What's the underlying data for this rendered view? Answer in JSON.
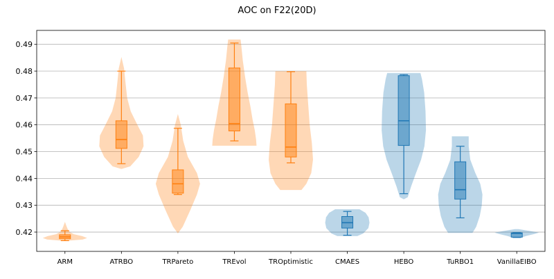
{
  "chart_data": {
    "type": "violin+box",
    "title": "AOC on F22(20D)",
    "xlabel": "",
    "ylabel": "",
    "ylim": [
      0.4128,
      0.4952
    ],
    "yticks": [
      0.42,
      0.43,
      0.44,
      0.45,
      0.46,
      0.47,
      0.48,
      0.49
    ],
    "grid": "horizontal",
    "colors": {
      "orange": "#ff7f0e",
      "blue": "#1f77b4"
    },
    "categories": [
      "ARM",
      "ATRBO",
      "TRPareto",
      "TREvol",
      "TROptimistic",
      "CMAES",
      "HEBO",
      "TuRBO1",
      "VanillaEIBO"
    ],
    "groups": [
      {
        "name": "ARM",
        "color": "orange",
        "box": {
          "whislo": 0.4168,
          "q1": 0.4175,
          "med": 0.4182,
          "q3": 0.419,
          "whishi": 0.4205
        },
        "violin": [
          [
            0.4167,
            0.0
          ],
          [
            0.4172,
            0.8
          ],
          [
            0.4178,
            1.0
          ],
          [
            0.4185,
            0.78
          ],
          [
            0.4192,
            0.4
          ],
          [
            0.42,
            0.22
          ],
          [
            0.421,
            0.13
          ],
          [
            0.4222,
            0.07
          ],
          [
            0.4238,
            0.0
          ]
        ]
      },
      {
        "name": "ATRBO",
        "color": "orange",
        "box": {
          "whislo": 0.4455,
          "q1": 0.4512,
          "med": 0.4545,
          "q3": 0.4615,
          "whishi": 0.48
        },
        "violin": [
          [
            0.4435,
            0.0
          ],
          [
            0.4445,
            0.4
          ],
          [
            0.448,
            0.78
          ],
          [
            0.452,
            1.0
          ],
          [
            0.456,
            0.97
          ],
          [
            0.46,
            0.72
          ],
          [
            0.465,
            0.42
          ],
          [
            0.47,
            0.26
          ],
          [
            0.476,
            0.18
          ],
          [
            0.481,
            0.12
          ],
          [
            0.4853,
            0.0
          ]
        ]
      },
      {
        "name": "TRPareto",
        "color": "orange",
        "box": {
          "whislo": 0.434,
          "q1": 0.4345,
          "med": 0.438,
          "q3": 0.4432,
          "whishi": 0.4587
        },
        "violin": [
          [
            0.4195,
            0.0
          ],
          [
            0.422,
            0.22
          ],
          [
            0.428,
            0.55
          ],
          [
            0.434,
            0.86
          ],
          [
            0.438,
            1.0
          ],
          [
            0.442,
            0.86
          ],
          [
            0.448,
            0.45
          ],
          [
            0.454,
            0.24
          ],
          [
            0.46,
            0.13
          ],
          [
            0.464,
            0.0
          ]
        ]
      },
      {
        "name": "TREvol",
        "color": "orange",
        "box": {
          "whislo": 0.454,
          "q1": 0.4577,
          "med": 0.4604,
          "q3": 0.4812,
          "whishi": 0.4905
        },
        "violin": [
          [
            0.4522,
            1.0
          ],
          [
            0.4545,
            0.98
          ],
          [
            0.458,
            0.92
          ],
          [
            0.462,
            0.82
          ],
          [
            0.467,
            0.72
          ],
          [
            0.472,
            0.6
          ],
          [
            0.478,
            0.48
          ],
          [
            0.484,
            0.38
          ],
          [
            0.489,
            0.32
          ],
          [
            0.4918,
            0.28
          ]
        ]
      },
      {
        "name": "TROptimistic",
        "color": "orange",
        "box": {
          "whislo": 0.4458,
          "q1": 0.448,
          "med": 0.4517,
          "q3": 0.4678,
          "whishi": 0.4798
        },
        "violin": [
          [
            0.4357,
            0.48
          ],
          [
            0.438,
            0.7
          ],
          [
            0.442,
            0.92
          ],
          [
            0.447,
            1.0
          ],
          [
            0.453,
            0.95
          ],
          [
            0.46,
            0.85
          ],
          [
            0.468,
            0.78
          ],
          [
            0.475,
            0.72
          ],
          [
            0.48,
            0.7
          ]
        ]
      },
      {
        "name": "CMAES",
        "color": "blue",
        "box": {
          "whislo": 0.4188,
          "q1": 0.4215,
          "med": 0.4235,
          "q3": 0.4258,
          "whishi": 0.4277
        },
        "violin": [
          [
            0.4185,
            0.45
          ],
          [
            0.4195,
            0.72
          ],
          [
            0.4215,
            0.95
          ],
          [
            0.4235,
            1.0
          ],
          [
            0.4255,
            0.96
          ],
          [
            0.4272,
            0.82
          ],
          [
            0.4285,
            0.55
          ]
        ]
      },
      {
        "name": "HEBO",
        "color": "blue",
        "box": {
          "whislo": 0.4343,
          "q1": 0.4523,
          "med": 0.4615,
          "q3": 0.4783,
          "whishi": 0.4787
        },
        "violin": [
          [
            0.4322,
            0.0
          ],
          [
            0.433,
            0.18
          ],
          [
            0.437,
            0.33
          ],
          [
            0.442,
            0.55
          ],
          [
            0.447,
            0.78
          ],
          [
            0.452,
            0.93
          ],
          [
            0.458,
            1.0
          ],
          [
            0.465,
            0.98
          ],
          [
            0.472,
            0.92
          ],
          [
            0.477,
            0.82
          ],
          [
            0.4793,
            0.75
          ]
        ]
      },
      {
        "name": "TuRBO1",
        "color": "blue",
        "box": {
          "whislo": 0.4253,
          "q1": 0.4323,
          "med": 0.4358,
          "q3": 0.4462,
          "whishi": 0.452
        },
        "violin": [
          [
            0.4197,
            0.55
          ],
          [
            0.422,
            0.72
          ],
          [
            0.426,
            0.88
          ],
          [
            0.43,
            0.97
          ],
          [
            0.434,
            1.0
          ],
          [
            0.438,
            0.9
          ],
          [
            0.442,
            0.68
          ],
          [
            0.447,
            0.45
          ],
          [
            0.452,
            0.38
          ],
          [
            0.4557,
            0.38
          ]
        ]
      },
      {
        "name": "VanillaEIBO",
        "color": "blue",
        "box": {
          "whislo": 0.418,
          "q1": 0.4181,
          "med": 0.4195,
          "q3": 0.4197,
          "whishi": 0.4198
        },
        "violin": [
          [
            0.4178,
            0.15
          ],
          [
            0.4185,
            0.4
          ],
          [
            0.4193,
            0.8
          ],
          [
            0.4198,
            1.0
          ],
          [
            0.4204,
            0.6
          ],
          [
            0.4211,
            0.08
          ]
        ]
      }
    ]
  }
}
